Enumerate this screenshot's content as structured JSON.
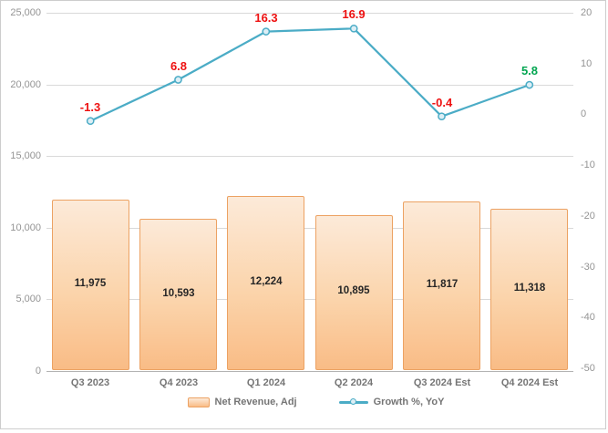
{
  "chart_data": {
    "type": "bar",
    "subtype": "combo-bar-line",
    "categories": [
      "Q3 2023",
      "Q4 2023",
      "Q1 2024",
      "Q2 2024",
      "Q3 2024 Est",
      "Q4 2024 Est"
    ],
    "series": [
      {
        "name": "Net Revenue, Adj",
        "type": "bar",
        "axis": "left",
        "values": [
          11975,
          10593,
          12224,
          10895,
          11817,
          11318
        ],
        "labels": [
          "11,975",
          "10,593",
          "12,224",
          "10,895",
          "11,817",
          "11,318"
        ]
      },
      {
        "name": "Growth %, YoY",
        "type": "line",
        "axis": "right",
        "values": [
          -1.3,
          6.8,
          16.3,
          16.9,
          -0.4,
          5.8
        ],
        "labels": [
          "-1.3",
          "6.8",
          "16.3",
          "16.9",
          "-0.4",
          "5.8"
        ],
        "label_colors": [
          "red",
          "red",
          "red",
          "red",
          "red",
          "green"
        ]
      }
    ],
    "left_axis": {
      "ylim": [
        0,
        25000
      ],
      "tick_values": [
        25000,
        20000,
        15000,
        10000,
        5000,
        0
      ],
      "tick_labels": [
        "25,000",
        "20,000",
        "15,000",
        "10,000",
        "5,000",
        "0"
      ]
    },
    "right_axis": {
      "ylim": [
        -50,
        20
      ],
      "tick_values": [
        20,
        10,
        0,
        -10,
        -20,
        -30,
        -40,
        -50
      ],
      "tick_labels": [
        "20",
        "10",
        "0",
        "-10",
        "-20",
        "-30",
        "-40",
        "-50"
      ]
    },
    "grid": true,
    "legend_position": "bottom",
    "legend": [
      "Net Revenue, Adj",
      "Growth %, YoY"
    ]
  },
  "colors": {
    "bar_fill_top": "#fcead9",
    "bar_fill_bottom": "#f9bc86",
    "bar_border": "#eca263",
    "line": "#4bacc6",
    "marker_fill": "#dceef5",
    "label_red": "#ee1111",
    "label_green": "#00a550",
    "grid": "#d9d9d9",
    "axis_text": "#949494",
    "category_text": "#757575",
    "bar_label_text": "#262626",
    "frame_border": "#cdcdcd"
  }
}
